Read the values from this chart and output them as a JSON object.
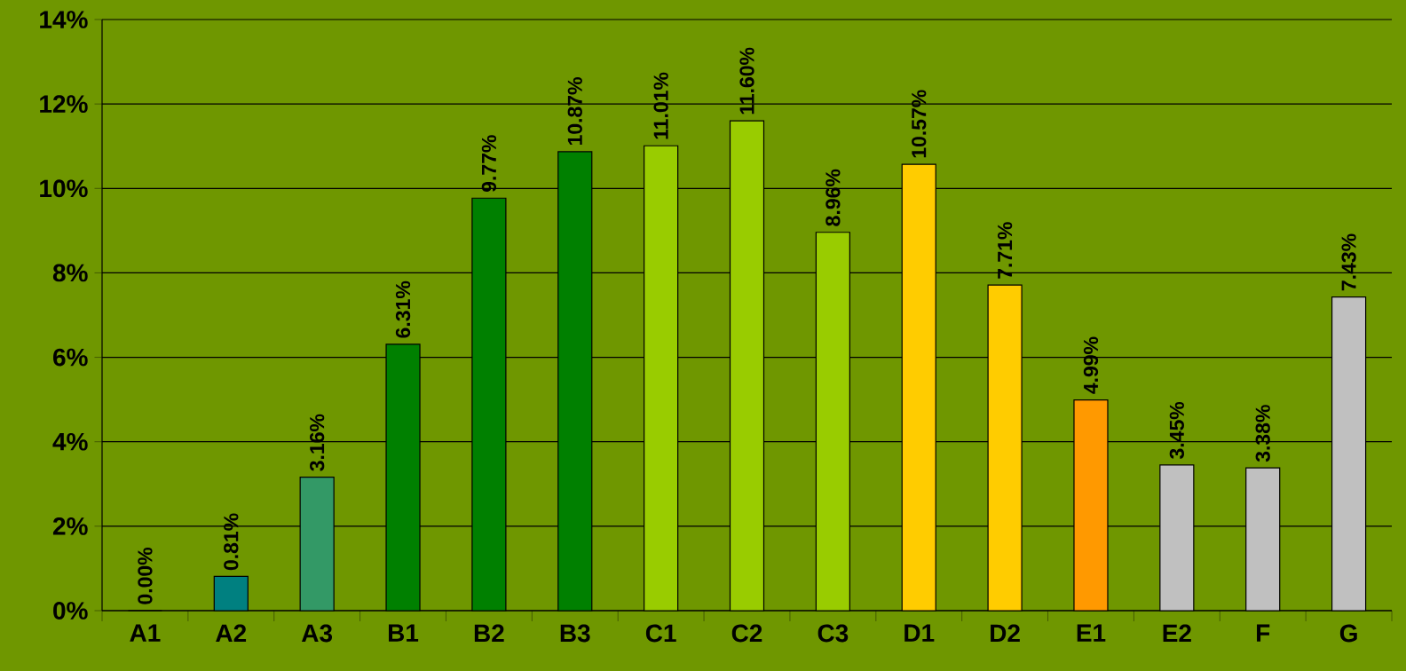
{
  "chart_data": {
    "type": "bar",
    "categories": [
      "A1",
      "A2",
      "A3",
      "B1",
      "B2",
      "B3",
      "C1",
      "C2",
      "C3",
      "D1",
      "D2",
      "E1",
      "E2",
      "F",
      "G"
    ],
    "values": [
      0.0,
      0.81,
      3.16,
      6.31,
      9.77,
      10.87,
      11.01,
      11.6,
      8.96,
      10.57,
      7.71,
      4.99,
      3.45,
      3.38,
      7.43
    ],
    "colors": [
      "#008080",
      "#008080",
      "#339966",
      "#008000",
      "#008000",
      "#008000",
      "#99cc00",
      "#99cc00",
      "#99cc00",
      "#ffcc00",
      "#ffcc00",
      "#ff9900",
      "#c0c0c0",
      "#c0c0c0",
      "#c0c0c0"
    ],
    "value_labels": [
      "0.00%",
      "0.81%",
      "3.16%",
      "6.31%",
      "9.77%",
      "10.87%",
      "11.01%",
      "11.60%",
      "8.96%",
      "10.57%",
      "7.71%",
      "4.99%",
      "3.45%",
      "3.38%",
      "7.43%"
    ],
    "ylim": [
      0,
      14
    ],
    "yticks": [
      {
        "value": 0,
        "label": "0%"
      },
      {
        "value": 2,
        "label": "2%"
      },
      {
        "value": 4,
        "label": "4%"
      },
      {
        "value": 6,
        "label": "6%"
      },
      {
        "value": 8,
        "label": "8%"
      },
      {
        "value": 10,
        "label": "10%"
      },
      {
        "value": 12,
        "label": "12%"
      },
      {
        "value": 14,
        "label": "14%"
      }
    ],
    "grid": "y"
  }
}
